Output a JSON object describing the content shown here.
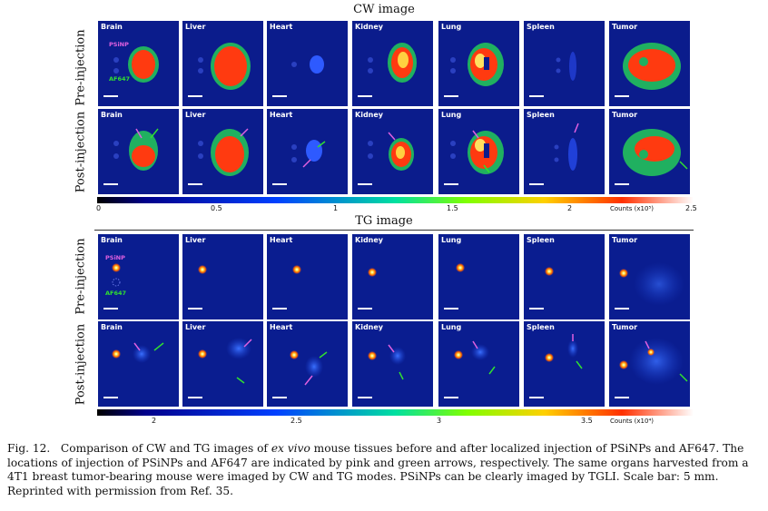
{
  "cw_title": "CW image",
  "tg_title": "TG image",
  "rows": {
    "pre": "Pre-injection",
    "post": "Post-injection"
  },
  "organs": [
    "Brain",
    "Liver",
    "Heart",
    "Kidney",
    "Lung",
    "Spleen",
    "Tumor"
  ],
  "markers": {
    "psinp": "PSiNP",
    "af647": "AF647",
    "psinp_color": "#e060e0",
    "af647_color": "#30e030"
  },
  "cw_colorbar": {
    "ticks": [
      "0",
      "0.5",
      "1",
      "1.5",
      "2",
      "2.5"
    ],
    "unit": "Counts (x10⁵)"
  },
  "tg_colorbar": {
    "ticks": [
      "2",
      "2.5",
      "3",
      "3.5"
    ],
    "unit": "Counts (x10⁴)"
  },
  "caption": {
    "fig": "Fig. 12.",
    "part1": "Comparison of CW and TG images of ",
    "italic": "ex vivo",
    "part2": " mouse tissues before and after localized injection of PSiNPs and AF647. The locations of injection of PSiNPs and AF647 are indicated by pink and green arrows, respectively. The same organs harvested from a 4T1 breast tumor-bearing mouse were imaged by CW and TG modes. PSiNPs can be clearly imaged by TGLI. Scale bar: 5 mm. Reprinted with permission from Ref. 35."
  }
}
